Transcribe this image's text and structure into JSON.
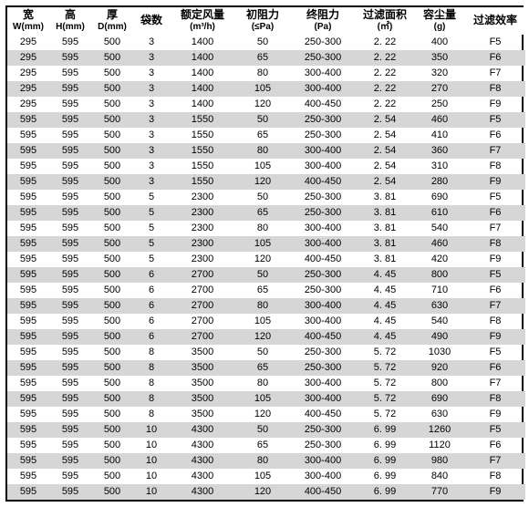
{
  "header": {
    "width": {
      "top": "宽",
      "sub": "W(mm)"
    },
    "height": {
      "top": "高",
      "sub": "H(mm)"
    },
    "depth": {
      "top": "厚",
      "sub": "D(mm)"
    },
    "bags": {
      "top": "袋数",
      "sub": ""
    },
    "airflow": {
      "top": "额定风量",
      "sub": "(m³/h)"
    },
    "initres": {
      "top": "初阻力",
      "sub": "(≤Pa)"
    },
    "finalres": {
      "top": "终阻力",
      "sub": "(Pa)"
    },
    "filterarea": {
      "top": "过滤面积",
      "sub": "(㎡)"
    },
    "dustcap": {
      "top": "容尘量",
      "sub": "(g)"
    },
    "eff": {
      "top": "过滤效率",
      "sub": ""
    }
  },
  "rows": [
    [
      "295",
      "595",
      "500",
      "3",
      "1400",
      "50",
      "250-300",
      "2. 22",
      "400",
      "F5"
    ],
    [
      "295",
      "595",
      "500",
      "3",
      "1400",
      "65",
      "250-300",
      "2. 22",
      "350",
      "F6"
    ],
    [
      "295",
      "595",
      "500",
      "3",
      "1400",
      "80",
      "300-400",
      "2. 22",
      "320",
      "F7"
    ],
    [
      "295",
      "595",
      "500",
      "3",
      "1400",
      "105",
      "300-400",
      "2. 22",
      "270",
      "F8"
    ],
    [
      "295",
      "595",
      "500",
      "3",
      "1400",
      "120",
      "400-450",
      "2. 22",
      "250",
      "F9"
    ],
    [
      "595",
      "595",
      "500",
      "3",
      "1550",
      "50",
      "250-300",
      "2. 54",
      "460",
      "F5"
    ],
    [
      "595",
      "595",
      "500",
      "3",
      "1550",
      "65",
      "250-300",
      "2. 54",
      "410",
      "F6"
    ],
    [
      "595",
      "595",
      "500",
      "3",
      "1550",
      "80",
      "300-400",
      "2. 54",
      "360",
      "F7"
    ],
    [
      "595",
      "595",
      "500",
      "3",
      "1550",
      "105",
      "300-400",
      "2. 54",
      "310",
      "F8"
    ],
    [
      "595",
      "595",
      "500",
      "3",
      "1550",
      "120",
      "400-450",
      "2. 54",
      "280",
      "F9"
    ],
    [
      "595",
      "595",
      "500",
      "5",
      "2300",
      "50",
      "250-300",
      "3. 81",
      "690",
      "F5"
    ],
    [
      "595",
      "595",
      "500",
      "5",
      "2300",
      "65",
      "250-300",
      "3. 81",
      "610",
      "F6"
    ],
    [
      "595",
      "595",
      "500",
      "5",
      "2300",
      "80",
      "300-400",
      "3. 81",
      "540",
      "F7"
    ],
    [
      "595",
      "595",
      "500",
      "5",
      "2300",
      "105",
      "300-400",
      "3. 81",
      "460",
      "F8"
    ],
    [
      "595",
      "595",
      "500",
      "5",
      "2300",
      "120",
      "400-450",
      "3. 81",
      "420",
      "F9"
    ],
    [
      "595",
      "595",
      "500",
      "6",
      "2700",
      "50",
      "250-300",
      "4. 45",
      "800",
      "F5"
    ],
    [
      "595",
      "595",
      "500",
      "6",
      "2700",
      "65",
      "250-300",
      "4. 45",
      "710",
      "F6"
    ],
    [
      "595",
      "595",
      "500",
      "6",
      "2700",
      "80",
      "300-400",
      "4. 45",
      "630",
      "F7"
    ],
    [
      "595",
      "595",
      "500",
      "6",
      "2700",
      "105",
      "300-400",
      "4. 45",
      "540",
      "F8"
    ],
    [
      "595",
      "595",
      "500",
      "6",
      "2700",
      "120",
      "400-450",
      "4. 45",
      "490",
      "F9"
    ],
    [
      "595",
      "595",
      "500",
      "8",
      "3500",
      "50",
      "250-300",
      "5. 72",
      "1030",
      "F5"
    ],
    [
      "595",
      "595",
      "500",
      "8",
      "3500",
      "65",
      "250-300",
      "5. 72",
      "920",
      "F6"
    ],
    [
      "595",
      "595",
      "500",
      "8",
      "3500",
      "80",
      "300-400",
      "5. 72",
      "800",
      "F7"
    ],
    [
      "595",
      "595",
      "500",
      "8",
      "3500",
      "105",
      "300-400",
      "5. 72",
      "690",
      "F8"
    ],
    [
      "595",
      "595",
      "500",
      "8",
      "3500",
      "120",
      "400-450",
      "5. 72",
      "630",
      "F9"
    ],
    [
      "595",
      "595",
      "500",
      "10",
      "4300",
      "50",
      "250-300",
      "6. 99",
      "1260",
      "F5"
    ],
    [
      "595",
      "595",
      "500",
      "10",
      "4300",
      "65",
      "250-300",
      "6. 99",
      "1120",
      "F6"
    ],
    [
      "595",
      "595",
      "500",
      "10",
      "4300",
      "80",
      "300-400",
      "6. 99",
      "980",
      "F7"
    ],
    [
      "595",
      "595",
      "500",
      "10",
      "4300",
      "105",
      "300-400",
      "6. 99",
      "840",
      "F8"
    ],
    [
      "595",
      "595",
      "500",
      "10",
      "4300",
      "120",
      "400-450",
      "6. 99",
      "770",
      "F9"
    ]
  ],
  "stripe_color": "#d6d6d6",
  "border_color": "#000000",
  "background_color": "#ffffff"
}
